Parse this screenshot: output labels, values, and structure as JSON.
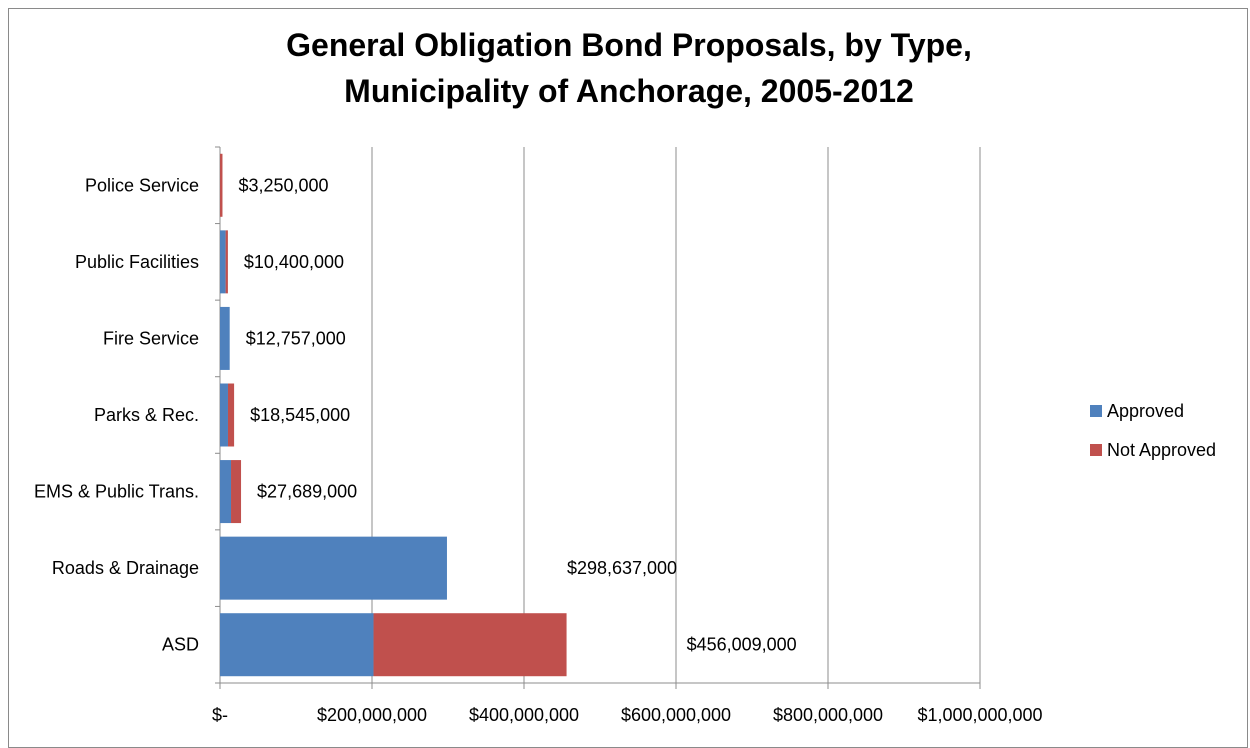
{
  "chart_data": {
    "type": "bar",
    "orientation": "horizontal",
    "stacked": true,
    "title_lines": [
      "General Obligation Bond Proposals, by Type,",
      "Municipality of Anchorage, 2005-2012"
    ],
    "categories": [
      "Police Service",
      "Public Facilities",
      "Fire Service",
      "Parks & Rec.",
      "EMS & Public Trans.",
      "Roads & Drainage",
      "ASD"
    ],
    "series": [
      {
        "name": "Approved",
        "color": "#4F81BD",
        "values": [
          0,
          7400000,
          12757000,
          10500000,
          14500000,
          298637000,
          202000000
        ]
      },
      {
        "name": "Not Approved",
        "color": "#C0504D",
        "values": [
          3250000,
          3000000,
          0,
          8045000,
          13189000,
          0,
          254009000
        ]
      }
    ],
    "totals_labels": [
      "$3,250,000",
      "$10,400,000",
      "$12,757,000",
      "$18,545,000",
      "$27,689,000",
      "$298,637,000",
      "$456,009,000"
    ],
    "totals": [
      3250000,
      10400000,
      12757000,
      18545000,
      27689000,
      298637000,
      456009000
    ],
    "x_ticks": [
      0,
      200000000,
      400000000,
      600000000,
      800000000,
      1000000000
    ],
    "x_tick_labels": [
      "$-",
      "$200,000,000",
      "$400,000,000",
      "$600,000,000",
      "$800,000,000",
      "$1,000,000,000"
    ],
    "xlim": [
      0,
      1000000000
    ],
    "grid": true,
    "legend_position": "right"
  }
}
